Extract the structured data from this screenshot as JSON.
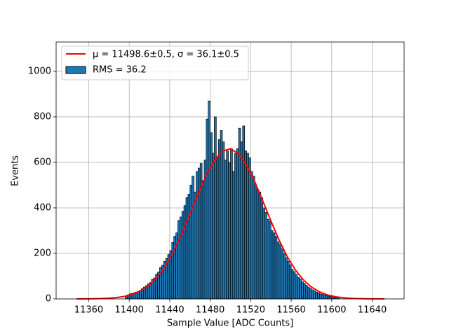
{
  "chart_data": {
    "type": "histogram",
    "xlabel": "Sample Value [ADC Counts]",
    "ylabel": "Events",
    "name": "RMS = 36.2",
    "color": "#1f77b4",
    "edgecolor": "#000000",
    "bins": [
      11396,
      11398,
      11400,
      11402,
      11404,
      11406,
      11408,
      11410,
      11412,
      11414,
      11416,
      11418,
      11420,
      11422,
      11424,
      11426,
      11428,
      11430,
      11432,
      11434,
      11436,
      11438,
      11440,
      11442,
      11444,
      11446,
      11448,
      11450,
      11452,
      11454,
      11456,
      11458,
      11460,
      11462,
      11464,
      11466,
      11468,
      11470,
      11472,
      11474,
      11476,
      11478,
      11480,
      11482,
      11484,
      11486,
      11488,
      11490,
      11492,
      11494,
      11496,
      11498,
      11500,
      11502,
      11504,
      11506,
      11508,
      11510,
      11512,
      11514,
      11516,
      11518,
      11520,
      11522,
      11524,
      11526,
      11528,
      11530,
      11532,
      11534,
      11536,
      11538,
      11540,
      11542,
      11544,
      11546,
      11548,
      11550,
      11552,
      11554,
      11556,
      11558,
      11560,
      11562,
      11564,
      11566,
      11568,
      11570,
      11572,
      11574,
      11576,
      11578,
      11580,
      11582,
      11584,
      11586,
      11588,
      11590,
      11592,
      11594,
      11596,
      11598,
      11600,
      11602,
      11604,
      11606,
      11608
    ],
    "counts": [
      14,
      18,
      22,
      24,
      27,
      30,
      33,
      38,
      45,
      52,
      58,
      66,
      72,
      85,
      92,
      108,
      118,
      138,
      148,
      165,
      178,
      195,
      212,
      248,
      275,
      290,
      345,
      360,
      385,
      410,
      445,
      460,
      500,
      540,
      470,
      560,
      575,
      595,
      520,
      610,
      790,
      870,
      730,
      640,
      800,
      620,
      700,
      740,
      690,
      610,
      650,
      600,
      660,
      560,
      640,
      660,
      750,
      690,
      760,
      650,
      640,
      620,
      560,
      540,
      500,
      480,
      470,
      445,
      400,
      380,
      350,
      340,
      300,
      290,
      275,
      250,
      240,
      220,
      200,
      180,
      165,
      150,
      130,
      120,
      108,
      95,
      88,
      75,
      68,
      60,
      52,
      46,
      40,
      35,
      30,
      26,
      22,
      20,
      17,
      14,
      12,
      10,
      9,
      8,
      6,
      5
    ],
    "fit": {
      "name": "μ = 11498.6±0.5, σ = 36.1±0.5",
      "color": "#ff0000",
      "x": [
        11348,
        11356,
        11364,
        11372,
        11380,
        11388,
        11396,
        11404,
        11412,
        11420,
        11428,
        11436,
        11444,
        11452,
        11460,
        11468,
        11476,
        11484,
        11492,
        11500,
        11508,
        11516,
        11524,
        11532,
        11540,
        11548,
        11556,
        11564,
        11572,
        11580,
        11588,
        11596,
        11604,
        11612,
        11620,
        11628,
        11636,
        11644,
        11652
      ],
      "y": [
        0.1,
        0.3,
        0.6,
        1.4,
        3.0,
        6.1,
        11.6,
        21.3,
        37.2,
        61.6,
        97.6,
        146.7,
        210,
        287,
        373,
        461,
        543,
        608,
        649,
        660,
        638,
        588,
        515,
        430,
        342,
        259,
        186,
        128,
        83.5,
        52,
        30.8,
        17.3,
        9.3,
        4.7,
        2.3,
        1.1,
        0.5,
        0.2,
        0.1
      ]
    },
    "xlim": [
      11327.8,
      11671.5
    ],
    "ylim": [
      0,
      1129
    ],
    "xticks": [
      11360,
      11400,
      11440,
      11480,
      11520,
      11560,
      11600,
      11640
    ],
    "yticks": [
      0,
      200,
      400,
      600,
      800,
      1000
    ],
    "grid": true,
    "legend": "upper left"
  }
}
